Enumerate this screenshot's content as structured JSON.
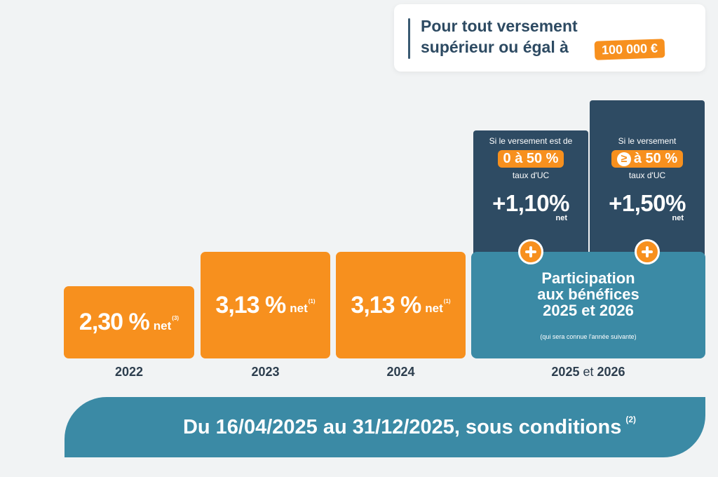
{
  "header": {
    "line1": "Pour tout versement",
    "line2": "supérieur ou égal à",
    "amount": "100 000 €"
  },
  "years": [
    {
      "year": "2022",
      "rate": "2,30 %",
      "net": "net",
      "note": "(3)"
    },
    {
      "year": "2023",
      "rate": "3,13 %",
      "net": "net",
      "note": "(1)"
    },
    {
      "year": "2024",
      "rate": "3,13 %",
      "net": "net",
      "note": "(1)"
    }
  ],
  "future": {
    "year_a": "2025",
    "et": "et",
    "year_b": "2026",
    "left": {
      "condition": "Si le versement est de",
      "badge": "0 à 50 %",
      "uc": "taux d'UC",
      "bonus": "+1,10%",
      "net": "net"
    },
    "right": {
      "condition": "Si le versement",
      "badge": "à 50 %",
      "uc": "taux d'UC",
      "bonus": "+1,50%",
      "net": "net"
    },
    "participation_line1": "Participation",
    "participation_line2": "aux bénéfices",
    "participation_line3": "2025 et 2026",
    "participation_note": "(qui sera connue l'année suivante)"
  },
  "banner": {
    "text": "Du 16/04/2025 au 31/12/2025, sous conditions",
    "note": "(2)"
  },
  "colors": {
    "orange": "#f7901e",
    "navy": "#2e4b63",
    "teal": "#3b8aa5",
    "background": "#f1f3f4"
  }
}
